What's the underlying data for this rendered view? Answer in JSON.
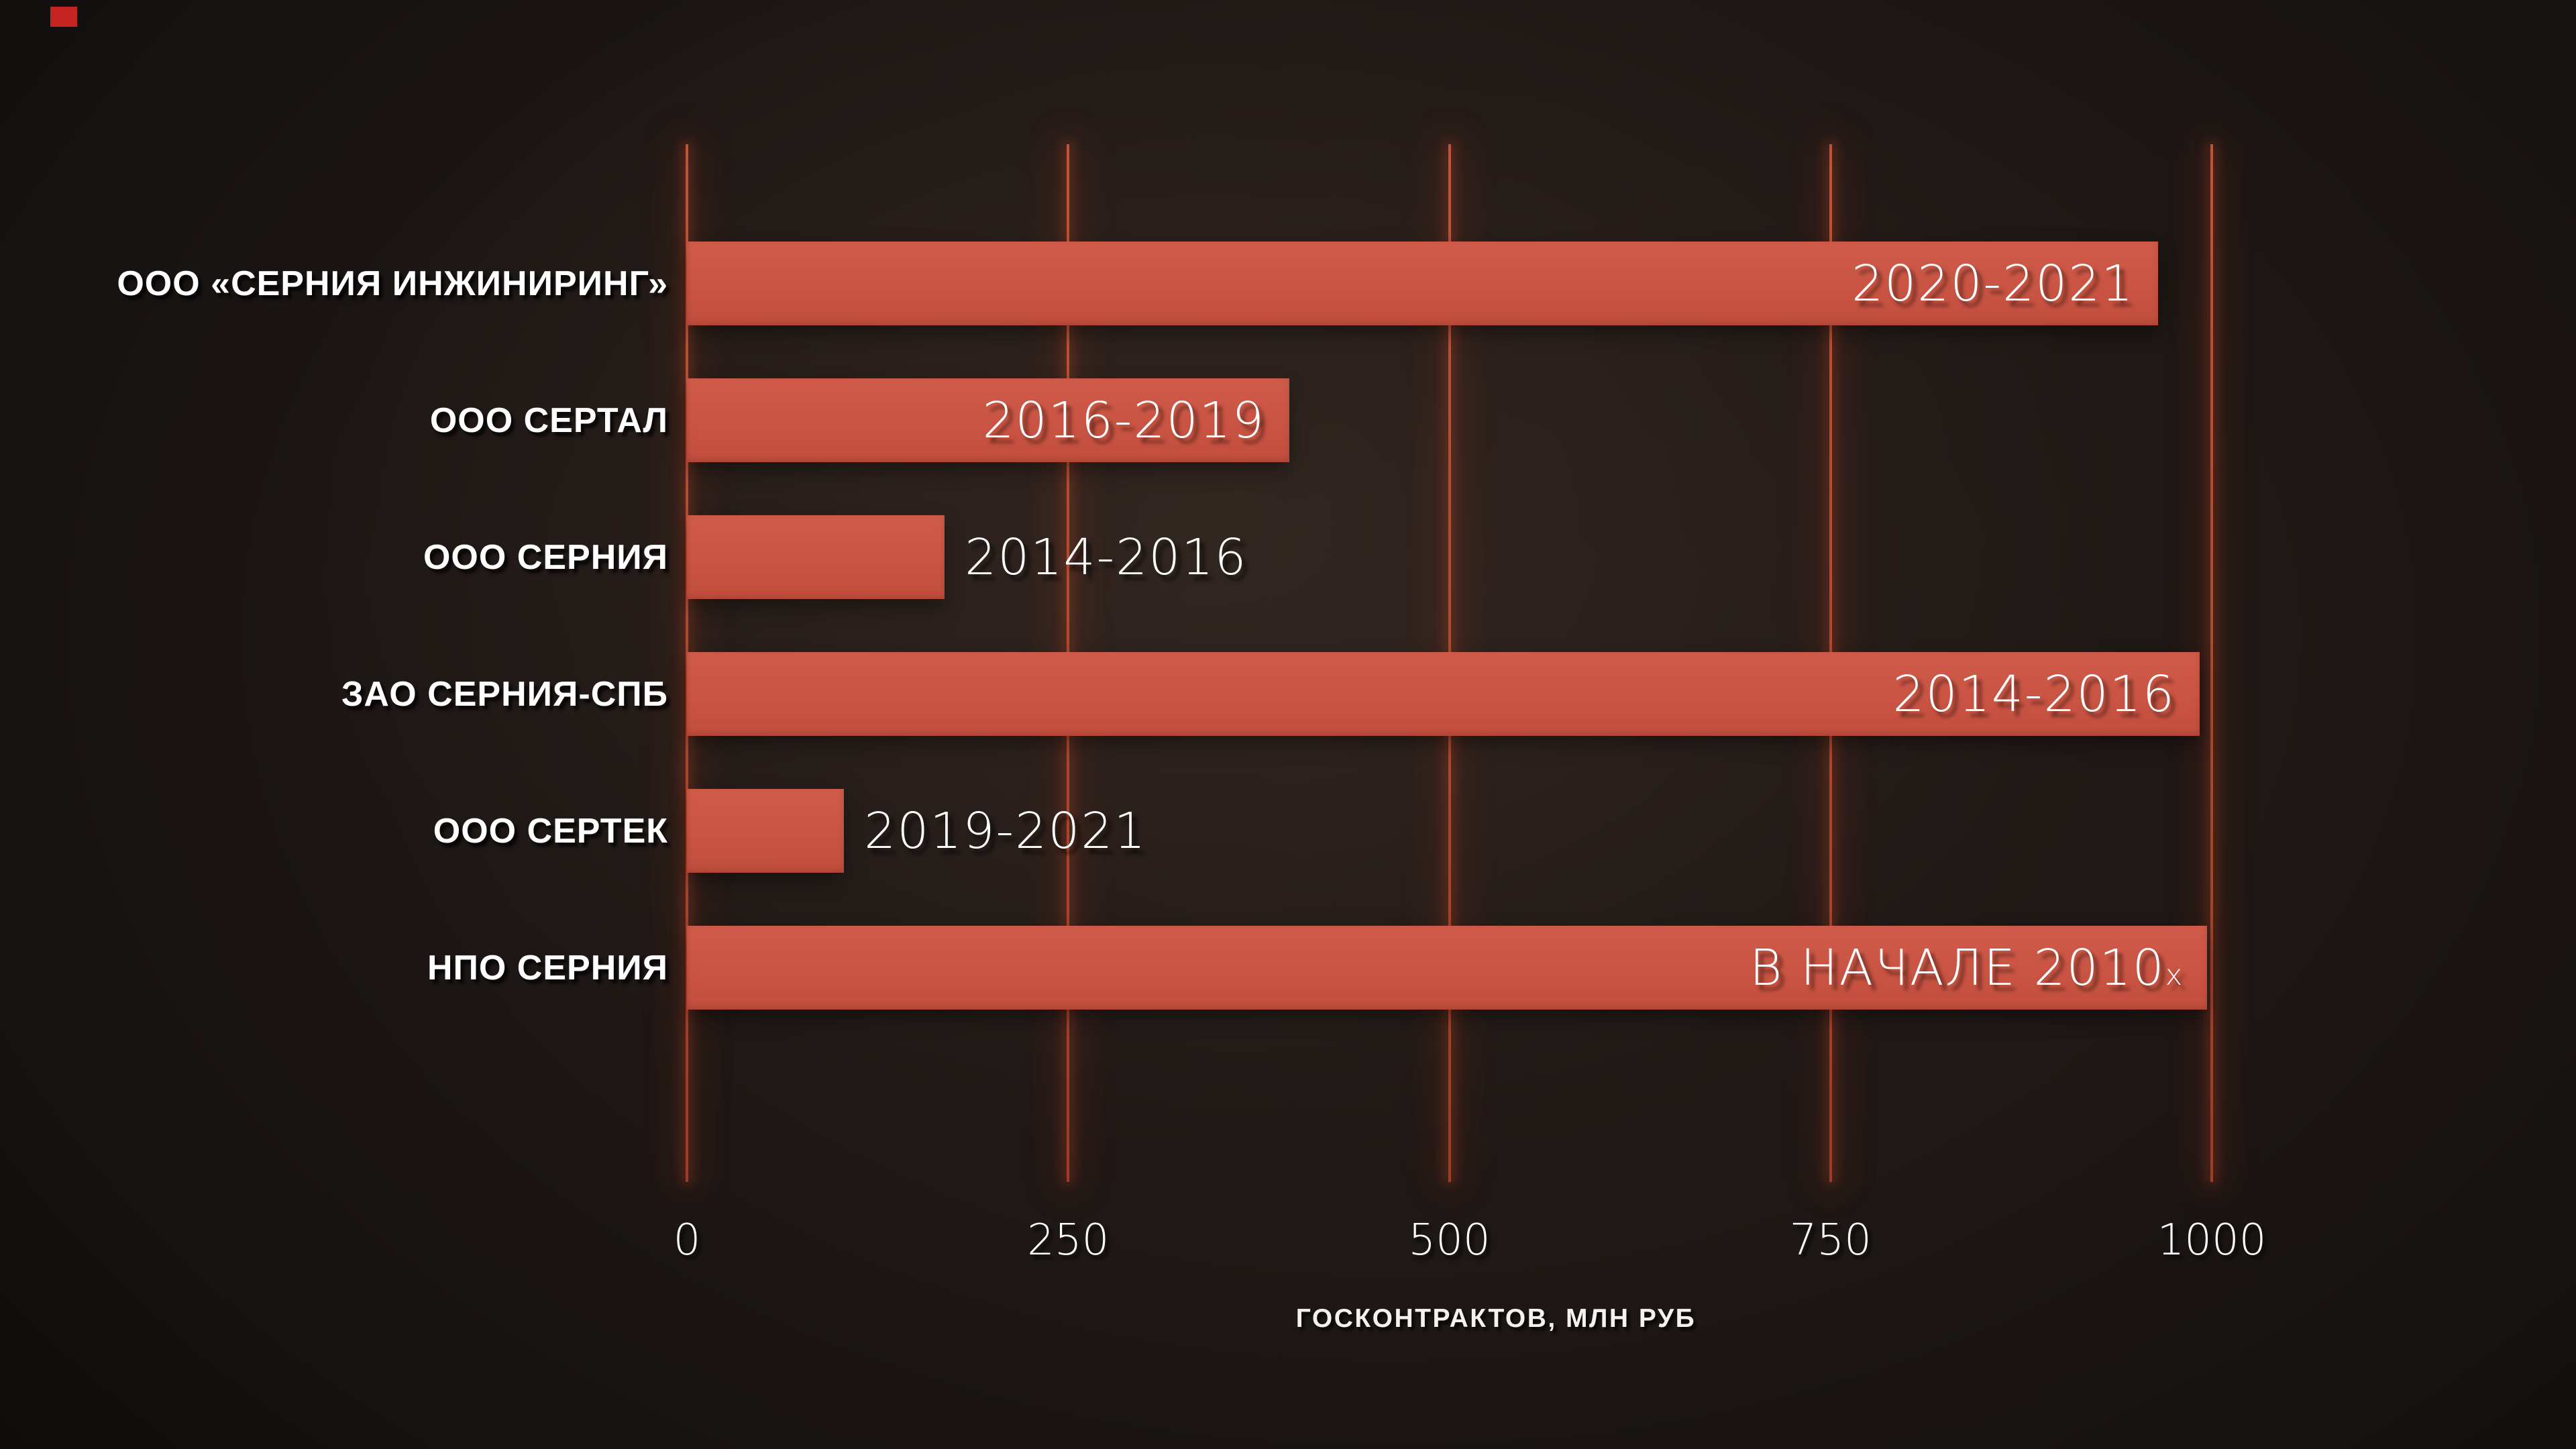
{
  "decor": {
    "corner_marker_color": "#c52521"
  },
  "chart_data": {
    "type": "bar",
    "orientation": "horizontal",
    "title": "",
    "xlabel": "ГОСКОНТРАКТОВ, МЛН РУБ",
    "ylabel": "",
    "xlim": [
      0,
      1000
    ],
    "x_ticks": [
      0,
      250,
      500,
      750,
      1000
    ],
    "x_tick_labels": [
      "0",
      "250",
      "500",
      "750",
      "1000"
    ],
    "grid": "vertical",
    "legend": "none",
    "bar_color": "#ca5443",
    "gridline_color": "#b4472f",
    "text_color": "#ffffff",
    "categories": [
      "ООО «СЕРНИЯ ИНЖИНИРИНГ»",
      "ООО СЕРТАЛ",
      "ООО СЕРНИЯ",
      "ЗАО СЕРНИЯ-СПБ",
      "ООО СЕРТЕК",
      "НПО СЕРНИЯ"
    ],
    "values": [
      965,
      395,
      169,
      992,
      103,
      997
    ],
    "bar_labels": [
      {
        "text": "2020-2021",
        "suffix": "",
        "inside": true
      },
      {
        "text": "2016-2019",
        "suffix": "",
        "inside": true
      },
      {
        "text": "2014-2016",
        "suffix": "",
        "inside": false
      },
      {
        "text": "2014-2016",
        "suffix": "",
        "inside": true
      },
      {
        "text": "2019-2021",
        "suffix": "",
        "inside": false
      },
      {
        "text": "В НАЧАЛЕ 2010",
        "suffix": "х",
        "inside": true
      }
    ]
  }
}
